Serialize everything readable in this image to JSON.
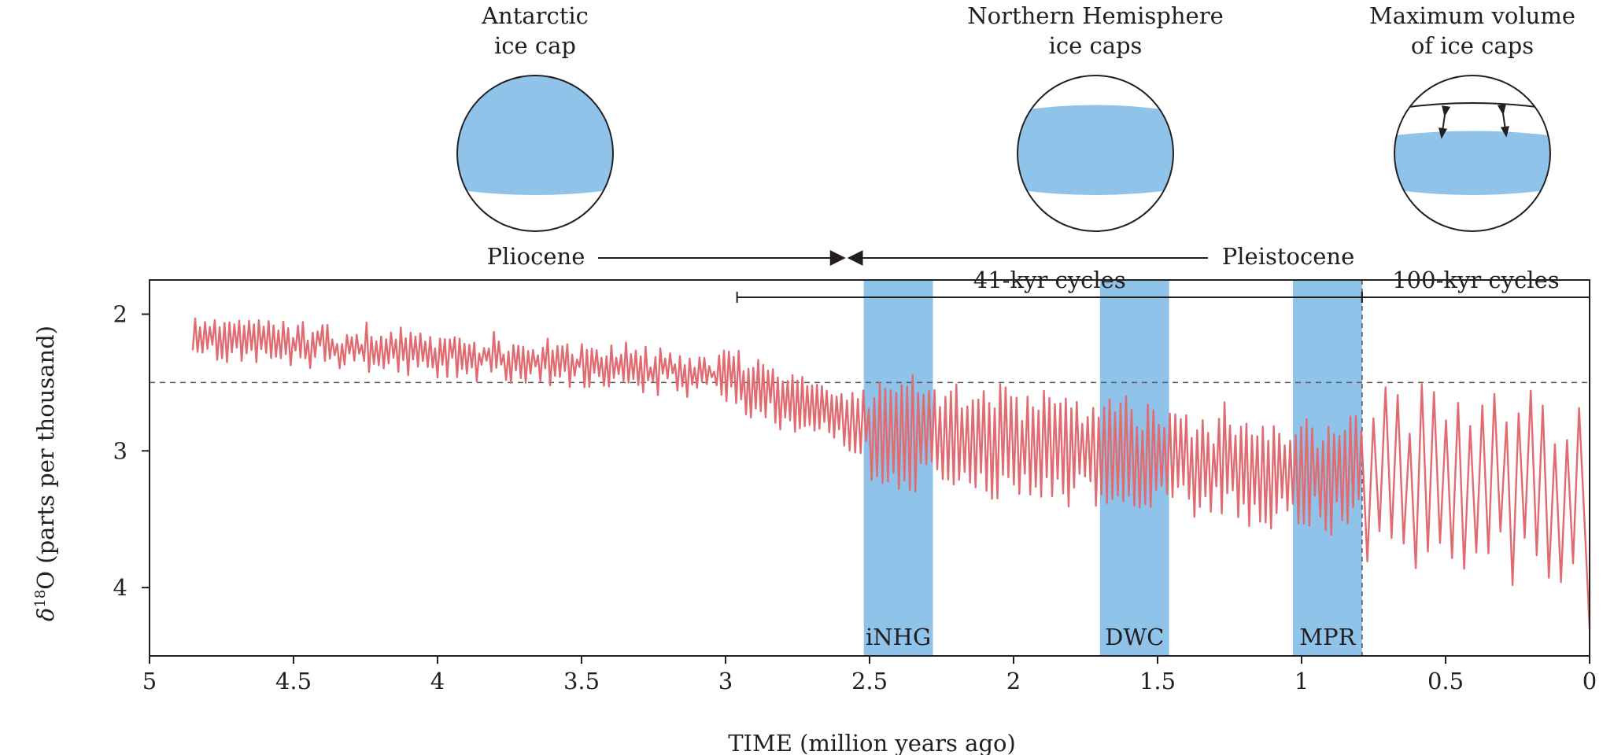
{
  "colors": {
    "curve": "#e06c72",
    "band": "#8fc3ea",
    "ice": "#8fc3ea",
    "axis": "#231f20",
    "dashed": "#555555"
  },
  "globes": [
    {
      "title_line1": "Antarctic",
      "title_line2": "ice cap",
      "kind": "antarctic"
    },
    {
      "title_line1": "Northern Hemisphere",
      "title_line2": "ice caps",
      "kind": "northern"
    },
    {
      "title_line1": "Maximum volume",
      "title_line2": "of ice caps",
      "kind": "maximum"
    }
  ],
  "epochs": {
    "pliocene": "Pliocene",
    "pleistocene": "Pleistocene",
    "boundary_ma": 2.58
  },
  "chart_data": {
    "type": "line",
    "xlabel": "TIME (million years ago)",
    "ylabel_delta": "δ",
    "ylabel_sup": "18",
    "ylabel_rest": "O (parts per thousand)",
    "xlim": [
      5,
      0
    ],
    "ylim": [
      1.75,
      4.5
    ],
    "y_inverted": true,
    "x_ticks": [
      5,
      4.5,
      4,
      3.5,
      3,
      2.5,
      2,
      1.5,
      1,
      0.5,
      0
    ],
    "x_tick_labels": [
      "5",
      "4.5",
      "4",
      "3.5",
      "3",
      "2.5",
      "2",
      "1.5",
      "1",
      "0.5",
      "0"
    ],
    "y_ticks": [
      2,
      3,
      4
    ],
    "y_tick_labels": [
      "2",
      "3",
      "4"
    ],
    "reference_line": 2.5,
    "bands": [
      {
        "label": "iNHG",
        "from": 2.52,
        "to": 2.28
      },
      {
        "label": "DWC",
        "from": 1.7,
        "to": 1.46
      },
      {
        "label": "MPR",
        "from": 1.03,
        "to": 0.79
      }
    ],
    "cycle_spans": [
      {
        "label": "41-kyr cycles",
        "from": 2.96,
        "to": 0.79
      },
      {
        "label": "100-kyr cycles",
        "from": 0.79,
        "to": 0
      }
    ],
    "mpr_line": 0.79,
    "series": [
      {
        "name": "δ18O",
        "anchors": [
          [
            4.85,
            2.15
          ],
          [
            3.0,
            2.45
          ],
          [
            2.5,
            2.85
          ],
          [
            0.8,
            3.2
          ],
          [
            0,
            3.3
          ]
        ]
      }
    ]
  }
}
